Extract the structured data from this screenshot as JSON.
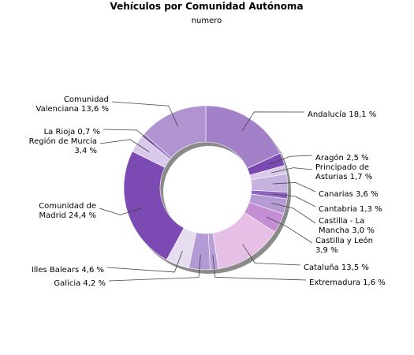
{
  "chart_data": {
    "type": "pie",
    "title": "Vehículos por Comunidad Autónoma",
    "subtitle": "numero",
    "series": [
      {
        "label": "Andalucía",
        "value": 18.1,
        "text": "Andalucía 18,1 %",
        "color": "#a381c8"
      },
      {
        "label": "Aragón",
        "value": 2.5,
        "text": "Aragón 2,5 %",
        "color": "#7a49b2"
      },
      {
        "label": "Principado de Asturias",
        "value": 1.7,
        "text": "Principado de\nAsturias 1,7 %",
        "color": "#d8cae8"
      },
      {
        "label": "Canarias",
        "value": 3.6,
        "text": "Canarias 3,6 %",
        "color": "#c6b2de"
      },
      {
        "label": "Cantabria",
        "value": 1.3,
        "text": "Cantabria 1,3 %",
        "color": "#8d63bf"
      },
      {
        "label": "Castilla - La Mancha",
        "value": 3.0,
        "text": "Castilla - La\nMancha 3,0 %",
        "color": "#b59bd4"
      },
      {
        "label": "Castilla y León",
        "value": 3.9,
        "text": "Castilla y León\n3,9 %",
        "color": "#c58ed4"
      },
      {
        "label": "Cataluña",
        "value": 13.5,
        "text": "Cataluña 13,5 %",
        "color": "#e6bfe6"
      },
      {
        "label": "Extremadura",
        "value": 1.6,
        "text": "Extremadura 1,6 %",
        "color": "#b89fd6"
      },
      {
        "label": "Galicia",
        "value": 4.2,
        "text": "Galicia 4,2 %",
        "color": "#b49ad4"
      },
      {
        "label": "Illes Balears",
        "value": 4.6,
        "text": "Illes Balears 4,6 %",
        "color": "#e6def0"
      },
      {
        "label": "Comunidad de Madrid",
        "value": 24.4,
        "text": "Comunidad de\nMadrid 24,4 %",
        "color": "#7b4ab3"
      },
      {
        "label": "Región de Murcia",
        "value": 3.4,
        "text": "Región de Murcia\n3,4 %",
        "color": "#d9c9ea"
      },
      {
        "label": "La Rioja",
        "value": 0.7,
        "text": "La Rioja 0,7 %",
        "color": "#9c79c4"
      },
      {
        "label": "Comunidad Valenciana",
        "value": 13.6,
        "text": "Comunidad\nValenciana 13,6 %",
        "color": "#b094d2"
      }
    ]
  }
}
